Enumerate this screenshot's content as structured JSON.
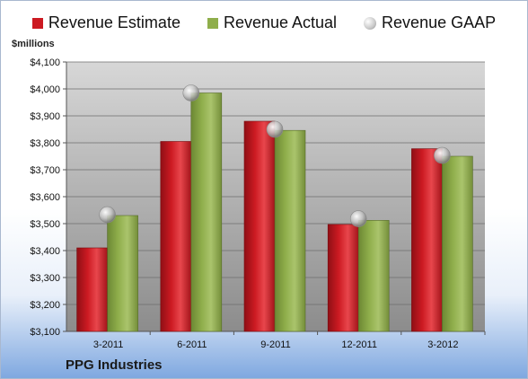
{
  "legend": {
    "estimate": "Revenue Estimate",
    "actual": "Revenue Actual",
    "gaap": "Revenue GAAP"
  },
  "units_label": "$millions",
  "company": "PPG Industries",
  "colors": {
    "estimate": "#cc1a22",
    "actual": "#8fae4b",
    "gaap": "#c8c8c8",
    "plot_bg_top": "#d7d7d7",
    "plot_bg_bottom": "#8c8c8c"
  },
  "chart_data": {
    "type": "bar",
    "categories": [
      "3-2011",
      "6-2011",
      "9-2011",
      "12-2011",
      "3-2012"
    ],
    "series": [
      {
        "name": "Revenue Estimate",
        "values": [
          3410,
          3805,
          3880,
          3497,
          3778
        ]
      },
      {
        "name": "Revenue Actual",
        "values": [
          3530,
          3985,
          3846,
          3512,
          3750
        ]
      },
      {
        "name": "Revenue GAAP",
        "values": [
          3533,
          3985,
          3850,
          3518,
          3753
        ]
      }
    ],
    "ylabel": "$millions",
    "ylim": [
      3100,
      4100
    ],
    "yticks": [
      3100,
      3200,
      3300,
      3400,
      3500,
      3600,
      3700,
      3800,
      3900,
      4000,
      4100
    ],
    "ytick_labels": [
      "$3,100",
      "$3,200",
      "$3,300",
      "$3,400",
      "$3,500",
      "$3,600",
      "$3,700",
      "$3,800",
      "$3,900",
      "$4,000",
      "$4,100"
    ],
    "grid": true,
    "legend_position": "top"
  }
}
